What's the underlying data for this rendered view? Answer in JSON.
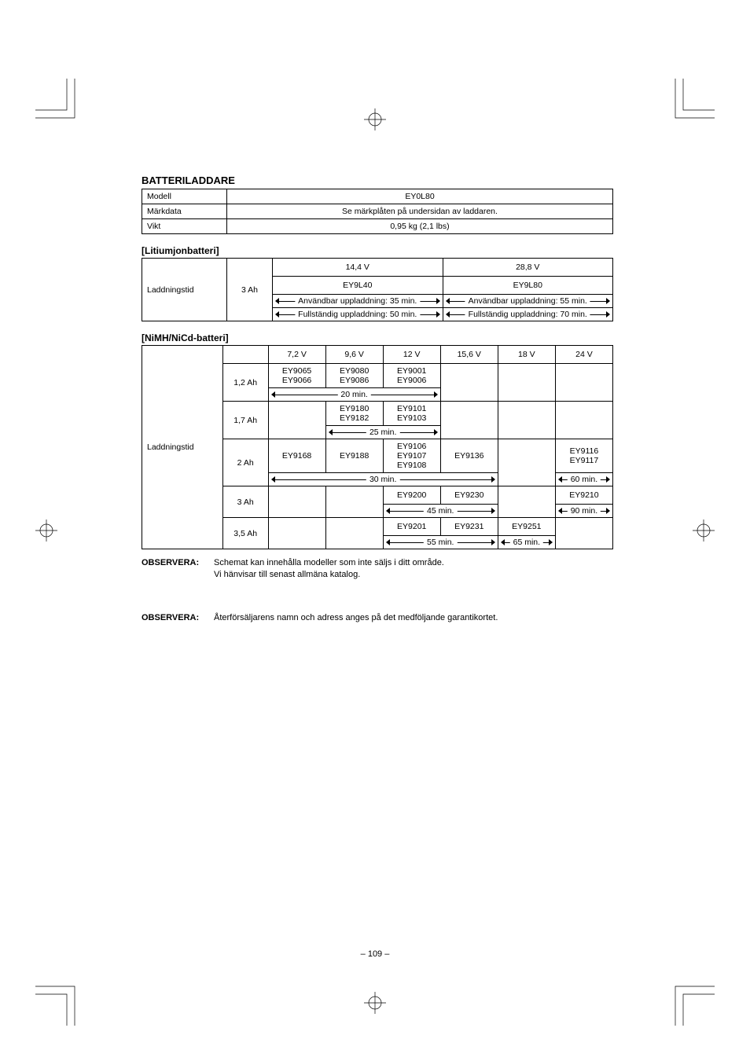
{
  "crop_color": "#000000",
  "charger_section": {
    "title": "BATTERILADDARE",
    "rows": [
      {
        "label": "Modell",
        "value": "EY0L80"
      },
      {
        "label": "Märkdata",
        "value": "Se märkplåten på undersidan av laddaren."
      },
      {
        "label": "Vikt",
        "value": "0,95 kg (2,1 lbs)"
      }
    ]
  },
  "lithium_section": {
    "title": "[Litiumjonbatteri]",
    "row_label": "Laddningstid",
    "capacity": "3 Ah",
    "cols": [
      {
        "voltage": "14,4 V",
        "model": "EY9L40",
        "usable": "Användbar uppladdning: 35 min.",
        "full": "Fullständig uppladdning: 50 min."
      },
      {
        "voltage": "28,8 V",
        "model": "EY9L80",
        "usable": "Användbar uppladdning: 55 min.",
        "full": "Fullständig uppladdning: 70 min."
      }
    ]
  },
  "nimh_section": {
    "title": "[NiMH/NiCd-batteri]",
    "row_label": "Laddningstid",
    "voltages": [
      "7,2 V",
      "9,6 V",
      "12 V",
      "15,6 V",
      "18 V",
      "24 V"
    ],
    "rows": [
      {
        "capacity": "1,2 Ah",
        "models": [
          [
            "EY9065",
            "EY9066"
          ],
          [
            "EY9080",
            "EY9086"
          ],
          [
            "EY9001",
            "EY9006"
          ],
          [],
          [],
          []
        ],
        "time_span": {
          "start": 0,
          "end": 2,
          "text": "20 min."
        },
        "extra": null
      },
      {
        "capacity": "1,7 Ah",
        "models": [
          [],
          [
            "EY9180",
            "EY9182"
          ],
          [
            "EY9101",
            "EY9103"
          ],
          [],
          [],
          []
        ],
        "time_span": {
          "start": 1,
          "end": 2,
          "text": "25 min."
        },
        "extra": null
      },
      {
        "capacity": "2 Ah",
        "models": [
          [
            "EY9168"
          ],
          [
            "EY9188"
          ],
          [
            "EY9106",
            "EY9107",
            "EY9108"
          ],
          [
            "EY9136"
          ],
          [],
          [
            "EY9116",
            "EY9117"
          ]
        ],
        "time_span": {
          "start": 0,
          "end": 3,
          "text": "30 min."
        },
        "extra": {
          "col": 5,
          "text": "60 min."
        }
      },
      {
        "capacity": "3 Ah",
        "models": [
          [],
          [],
          [
            "EY9200"
          ],
          [
            "EY9230"
          ],
          [],
          [
            "EY9210"
          ]
        ],
        "time_span": {
          "start": 2,
          "end": 3,
          "text": "45 min."
        },
        "extra": {
          "col": 5,
          "text": "90 min."
        }
      },
      {
        "capacity": "3,5 Ah",
        "models": [
          [],
          [],
          [
            "EY9201"
          ],
          [
            "EY9231"
          ],
          [
            "EY9251"
          ],
          []
        ],
        "time_span": {
          "start": 2,
          "end": 3,
          "text": "55 min."
        },
        "extra": {
          "col": 4,
          "text": "65 min."
        }
      }
    ]
  },
  "note1": {
    "label": "OBSERVERA:",
    "line1": "Schemat kan innehålla modeller som inte säljs i ditt område.",
    "line2": "Vi hänvisar till senast allmäna katalog."
  },
  "note2": {
    "label": "OBSERVERA:",
    "text": "Återförsäljarens namn och adress anges på det medföljande garantikortet."
  },
  "page_number": "– 109 –"
}
